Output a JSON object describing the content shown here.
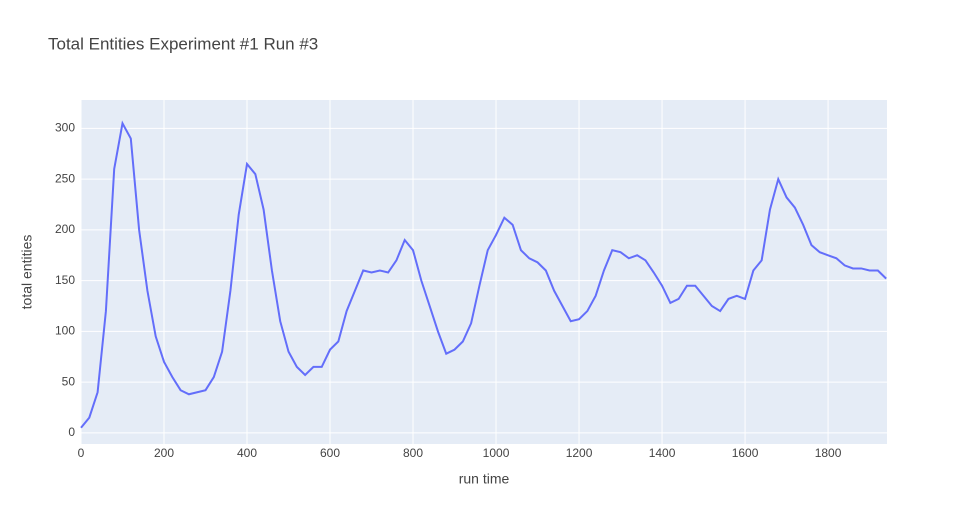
{
  "chart_data": {
    "type": "line",
    "title": "Total Entities Experiment #1 Run #3",
    "x_label": "run time",
    "y_label": "total entities",
    "x": [
      0,
      20,
      40,
      60,
      80,
      100,
      120,
      140,
      160,
      180,
      200,
      220,
      240,
      260,
      280,
      300,
      320,
      340,
      360,
      380,
      400,
      420,
      440,
      460,
      480,
      500,
      520,
      540,
      560,
      580,
      600,
      620,
      640,
      660,
      680,
      700,
      720,
      740,
      760,
      780,
      800,
      820,
      840,
      860,
      880,
      900,
      920,
      940,
      960,
      980,
      1000,
      1020,
      1040,
      1060,
      1080,
      1100,
      1120,
      1140,
      1160,
      1180,
      1200,
      1220,
      1240,
      1260,
      1280,
      1300,
      1320,
      1340,
      1360,
      1380,
      1400,
      1420,
      1440,
      1460,
      1480,
      1500,
      1520,
      1540,
      1560,
      1580,
      1600,
      1620,
      1640,
      1660,
      1680,
      1700,
      1720,
      1740,
      1760,
      1780,
      1800,
      1820,
      1840,
      1860,
      1880,
      1900,
      1920,
      1940
    ],
    "series": [
      {
        "name": "total entities",
        "color": "#636efa",
        "values": [
          5,
          15,
          40,
          120,
          260,
          305,
          290,
          200,
          140,
          95,
          70,
          55,
          42,
          38,
          40,
          42,
          55,
          80,
          140,
          215,
          265,
          255,
          220,
          160,
          110,
          80,
          65,
          57,
          65,
          65,
          82,
          90,
          120,
          140,
          160,
          158,
          160,
          158,
          170,
          190,
          180,
          150,
          125,
          100,
          78,
          82,
          90,
          108,
          145,
          180,
          195,
          212,
          205,
          180,
          172,
          168,
          160,
          140,
          125,
          110,
          112,
          120,
          135,
          160,
          180,
          178,
          172,
          175,
          170,
          158,
          145,
          128,
          132,
          145,
          145,
          135,
          125,
          120,
          132,
          135,
          132,
          160,
          170,
          220,
          250,
          232,
          222,
          205,
          185,
          178,
          175,
          172,
          165,
          162,
          162,
          160,
          160,
          152
        ]
      }
    ],
    "xlim": [
      0,
      1942
    ],
    "ylim": [
      -11,
      328
    ],
    "xticks": [
      0,
      200,
      400,
      600,
      800,
      1000,
      1200,
      1400,
      1600,
      1800
    ],
    "yticks": [
      0,
      50,
      100,
      150,
      200,
      250,
      300
    ],
    "grid": true
  }
}
